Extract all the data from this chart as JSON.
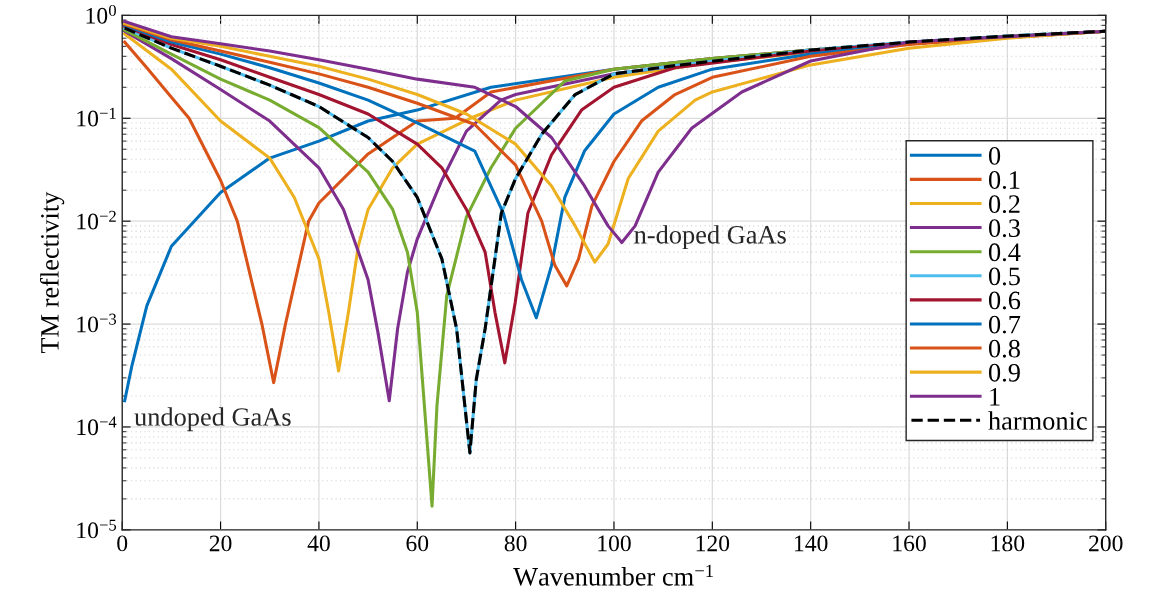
{
  "chart_data": {
    "type": "line",
    "xlabel": "Wavenumber cm$^{−1}$",
    "ylabel": "TM reflectivity",
    "log": "y",
    "xlim": [
      0,
      200
    ],
    "ylim": [
      1e-05,
      1
    ],
    "xticks": [
      0,
      20,
      40,
      60,
      80,
      100,
      120,
      140,
      160,
      180,
      200
    ],
    "yticks": [
      {
        "value": 1e-05,
        "label": "10$^{−5}$"
      },
      {
        "value": 0.0001,
        "label": "10$^{−4}$"
      },
      {
        "value": 0.001,
        "label": "10$^{−3}$"
      },
      {
        "value": 0.01,
        "label": "10$^{−2}$"
      },
      {
        "value": 0.1,
        "label": "10$^{−1}$"
      },
      {
        "value": 1,
        "label": "10$^{0}$"
      }
    ],
    "grid": true,
    "legend": "right",
    "line_style": "solid",
    "marker": "none",
    "annotations": [
      "undoped GaAs",
      {
        "text": "n-doped GaAs",
        "x": 104,
        "y": 0.007
      }
    ],
    "series": [
      {
        "name": "0",
        "color": "#0072bd",
        "x": [
          0.5,
          2,
          5,
          10,
          20,
          30,
          40,
          50,
          60,
          75,
          100,
          120,
          140,
          160,
          180,
          200
        ],
        "values": [
          0.00018,
          0.0004,
          0.0015,
          0.0057,
          0.019,
          0.041,
          0.06,
          0.094,
          0.12,
          0.2,
          0.3,
          0.38,
          0.46,
          0.54,
          0.62,
          0.7
        ]
      },
      {
        "name": "0.1",
        "color": "#d95319",
        "x": [
          0.5,
          5,
          10,
          13.6,
          20,
          23.4,
          28.4,
          30.8,
          33.2,
          37.9,
          40,
          50,
          60,
          67.7,
          75,
          100,
          120,
          140,
          160,
          180,
          200
        ],
        "values": [
          0.55,
          0.31,
          0.16,
          0.1,
          0.025,
          0.01,
          0.001,
          0.00027,
          0.001,
          0.01,
          0.015,
          0.045,
          0.094,
          0.1,
          0.18,
          0.3,
          0.38,
          0.46,
          0.53,
          0.61,
          0.7
        ]
      },
      {
        "name": "0.2",
        "color": "#edb120",
        "x": [
          0.5,
          10,
          20,
          30,
          35,
          40,
          42,
          44,
          46,
          48,
          50,
          55,
          60,
          70.8,
          80,
          100,
          120,
          140,
          160,
          180,
          200
        ],
        "values": [
          0.66,
          0.3,
          0.094,
          0.041,
          0.017,
          0.0043,
          0.0013,
          0.00035,
          0.0013,
          0.0057,
          0.013,
          0.033,
          0.056,
          0.1,
          0.15,
          0.25,
          0.35,
          0.44,
          0.53,
          0.61,
          0.7
        ]
      },
      {
        "name": "0.3",
        "color": "#7e2f8e",
        "x": [
          0.5,
          10,
          20,
          30,
          40,
          45,
          50,
          52,
          54.3,
          56,
          58,
          60,
          65,
          70,
          77,
          80,
          100,
          120,
          140,
          160,
          180,
          200
        ],
        "values": [
          0.7,
          0.38,
          0.19,
          0.094,
          0.033,
          0.013,
          0.0027,
          0.00083,
          0.00018,
          0.0009,
          0.0032,
          0.0067,
          0.025,
          0.075,
          0.15,
          0.17,
          0.27,
          0.36,
          0.45,
          0.53,
          0.61,
          0.7
        ]
      },
      {
        "name": "0.4",
        "color": "#77ac30",
        "x": [
          0.5,
          10,
          20,
          30,
          40,
          50,
          55,
          58,
          60,
          63,
          64,
          66,
          70,
          75,
          80,
          90,
          100,
          120,
          140,
          160
        ],
        "values": [
          0.72,
          0.42,
          0.24,
          0.15,
          0.081,
          0.03,
          0.013,
          0.005,
          0.0013,
          1.7e-05,
          0.00016,
          0.0019,
          0.011,
          0.033,
          0.08,
          0.23,
          0.3,
          0.38,
          0.46,
          0.54
        ]
      },
      {
        "name": "0.5",
        "color": "#4dbeee",
        "x": [
          0.5,
          10,
          20,
          30,
          40,
          50,
          55,
          60,
          65,
          68,
          70.7,
          72,
          73.8,
          77.1,
          80,
          85.3,
          92.1,
          100,
          113.5,
          140,
          160,
          180,
          200
        ],
        "values": [
          0.75,
          0.48,
          0.32,
          0.21,
          0.13,
          0.065,
          0.038,
          0.017,
          0.0043,
          0.0009,
          5.6e-05,
          0.00029,
          0.0009,
          0.012,
          0.026,
          0.07,
          0.17,
          0.27,
          0.33,
          0.46,
          0.55,
          0.63,
          0.7
        ]
      },
      {
        "name": "0.6",
        "color": "#a2142f",
        "x": [
          0.5,
          10,
          20,
          30,
          40,
          50,
          60,
          65,
          70,
          73.8,
          75.8,
          77.8,
          79.9,
          82.5,
          87.3,
          93.4,
          100,
          112.4,
          140,
          160,
          180,
          200
        ],
        "values": [
          0.78,
          0.52,
          0.37,
          0.25,
          0.17,
          0.11,
          0.056,
          0.033,
          0.013,
          0.005,
          0.0013,
          0.00042,
          0.0016,
          0.012,
          0.044,
          0.12,
          0.2,
          0.31,
          0.45,
          0.54,
          0.62,
          0.7
        ]
      },
      {
        "name": "0.7",
        "color": "#0072bd",
        "x": [
          0.5,
          10,
          20,
          30,
          40,
          50,
          60,
          71.7,
          77.5,
          81.2,
          84.2,
          87.3,
          90,
          94,
          100,
          109,
          120,
          140,
          160,
          180,
          200
        ],
        "values": [
          0.8,
          0.55,
          0.42,
          0.31,
          0.22,
          0.15,
          0.09,
          0.048,
          0.012,
          0.0027,
          0.00115,
          0.0037,
          0.017,
          0.048,
          0.11,
          0.2,
          0.3,
          0.42,
          0.53,
          0.62,
          0.7
        ]
      },
      {
        "name": "0.8",
        "color": "#d95319",
        "x": [
          0.5,
          10,
          20,
          30,
          40,
          50,
          60,
          71.7,
          80,
          85.3,
          88,
          90.4,
          92.8,
          95.5,
          100,
          105.6,
          112.4,
          120,
          140,
          160,
          180,
          200
        ],
        "values": [
          0.82,
          0.58,
          0.45,
          0.35,
          0.27,
          0.2,
          0.14,
          0.087,
          0.035,
          0.01,
          0.0037,
          0.00235,
          0.0043,
          0.014,
          0.038,
          0.094,
          0.17,
          0.25,
          0.4,
          0.52,
          0.62,
          0.7
        ]
      },
      {
        "name": "0.9",
        "color": "#edb120",
        "x": [
          0.5,
          10,
          20,
          30,
          40,
          50,
          60,
          70,
          80,
          87.3,
          92.1,
          96.1,
          98.8,
          102.9,
          109,
          116.5,
          120,
          140,
          160,
          180,
          200
        ],
        "values": [
          0.84,
          0.6,
          0.5,
          0.4,
          0.32,
          0.24,
          0.17,
          0.11,
          0.056,
          0.022,
          0.009,
          0.004,
          0.006,
          0.026,
          0.075,
          0.15,
          0.18,
          0.33,
          0.48,
          0.6,
          0.7
        ]
      },
      {
        "name": "1",
        "color": "#7e2f8e",
        "x": [
          0.5,
          10,
          20,
          30,
          40,
          50,
          60,
          71.7,
          80,
          87.3,
          94,
          98.8,
          101.6,
          104.3,
          109,
          115.8,
          126,
          140,
          160,
          180,
          200
        ],
        "values": [
          0.87,
          0.62,
          0.53,
          0.45,
          0.37,
          0.3,
          0.24,
          0.2,
          0.13,
          0.065,
          0.022,
          0.009,
          0.0062,
          0.009,
          0.03,
          0.08,
          0.18,
          0.36,
          0.55,
          0.62,
          0.7
        ]
      },
      {
        "name": "harmonic",
        "color": "#000000",
        "line_style": "dashed",
        "x": [
          0.5,
          10,
          20,
          30,
          40,
          50,
          55,
          60,
          65,
          68,
          70.7,
          72,
          73.8,
          77.1,
          80,
          85.3,
          92.1,
          100,
          113.5,
          140,
          160,
          180,
          200
        ],
        "values": [
          0.75,
          0.48,
          0.32,
          0.21,
          0.13,
          0.065,
          0.038,
          0.017,
          0.0043,
          0.0009,
          5.6e-05,
          0.00029,
          0.0009,
          0.012,
          0.026,
          0.07,
          0.17,
          0.27,
          0.33,
          0.46,
          0.55,
          0.63,
          0.7
        ]
      }
    ]
  }
}
